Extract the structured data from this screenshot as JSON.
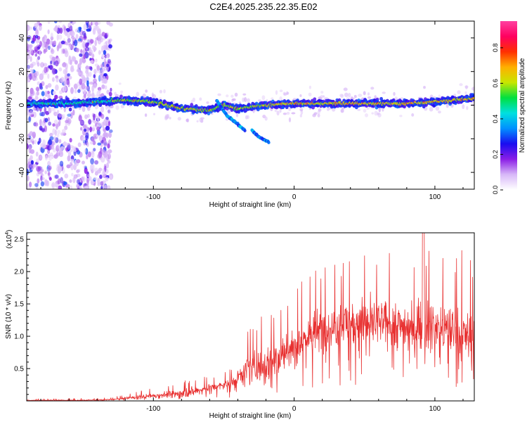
{
  "title": "C2E4.2025.235.22.35.E02",
  "chart_data": [
    {
      "type": "heatmap",
      "name": "spectrogram",
      "xlabel": "Height of straight line (km)",
      "ylabel": "Frequency (Hz)",
      "xlim": [
        -190,
        128
      ],
      "ylim": [
        -50,
        50
      ],
      "xticks": [
        -100,
        0,
        100
      ],
      "xtick_labels": [
        "-100",
        "0",
        "100"
      ],
      "yticks": [
        -40,
        -20,
        0,
        20,
        40
      ],
      "ytick_labels": [
        "-40",
        "-20",
        "0",
        "20",
        "40"
      ],
      "colorbar": {
        "label": "Normalized spectral amplitude",
        "range": [
          0.0,
          0.95
        ],
        "ticks": [
          0.0,
          0.2,
          0.4,
          0.6,
          0.8
        ],
        "tick_labels": [
          "0.0",
          "0.2",
          "0.4",
          "0.6",
          "0.8"
        ],
        "colors": [
          "#ffffff",
          "#d8b8f8",
          "#8a1ee6",
          "#1a0cf0",
          "#0090ff",
          "#00e0e0",
          "#00e040",
          "#c8e600",
          "#ffb000",
          "#ff3000",
          "#ff0060",
          "#ff40a0"
        ]
      },
      "main_band_center_hz": [
        [
          -190,
          1
        ],
        [
          -160,
          1
        ],
        [
          -140,
          2
        ],
        [
          -120,
          3
        ],
        [
          -100,
          2
        ],
        [
          -80,
          -2
        ],
        [
          -60,
          -3
        ],
        [
          -50,
          0
        ],
        [
          -40,
          -2
        ],
        [
          -20,
          0
        ],
        [
          0,
          1
        ],
        [
          20,
          1
        ],
        [
          40,
          1
        ],
        [
          60,
          1
        ],
        [
          80,
          1
        ],
        [
          100,
          2
        ],
        [
          128,
          4
        ]
      ],
      "secondary_branches_hz": [
        [
          [
            -55,
            3
          ],
          [
            -48,
            -6
          ],
          [
            -42,
            -10
          ],
          [
            -35,
            -15
          ]
        ],
        [
          [
            -30,
            -15
          ],
          [
            -25,
            -19
          ],
          [
            -18,
            -22
          ]
        ]
      ],
      "noise_region_km": [
        -190,
        -130
      ]
    },
    {
      "type": "line",
      "name": "snr",
      "xlabel": "Height of straight line (km)",
      "ylabel": "SNR (10 * v/v)",
      "scale_label": "(x10^4)",
      "xlim": [
        -190,
        128
      ],
      "ylim": [
        0,
        2.6
      ],
      "xticks": [
        -100,
        0,
        100
      ],
      "xtick_labels": [
        "-100",
        "0",
        "100"
      ],
      "yticks": [
        0.5,
        1.0,
        1.5,
        2.0,
        2.5
      ],
      "ytick_labels": [
        "0.5",
        "1.0",
        "1.5",
        "2.0",
        "2.5"
      ],
      "color": "#e83030",
      "envelope": {
        "x": [
          -190,
          -150,
          -130,
          -120,
          -100,
          -80,
          -70,
          -60,
          -50,
          -42,
          -38,
          -30,
          -20,
          -10,
          0,
          10,
          20,
          30,
          40,
          60,
          80,
          100,
          110,
          120,
          128
        ],
        "mean": [
          0.01,
          0.01,
          0.02,
          0.04,
          0.08,
          0.12,
          0.15,
          0.2,
          0.24,
          0.28,
          0.45,
          0.5,
          0.58,
          0.66,
          0.85,
          1.0,
          1.1,
          1.15,
          1.22,
          1.2,
          1.15,
          1.15,
          1.1,
          1.0,
          1.0
        ],
        "peak": [
          0.03,
          0.04,
          0.05,
          0.1,
          0.2,
          0.3,
          0.35,
          0.38,
          0.45,
          0.6,
          1.0,
          1.2,
          1.4,
          1.6,
          1.7,
          2.0,
          2.2,
          2.15,
          2.35,
          2.3,
          2.3,
          2.35,
          2.2,
          2.4,
          2.1
        ]
      },
      "annotations": [
        "Peak ~2.6 near x = 92 km"
      ]
    }
  ]
}
